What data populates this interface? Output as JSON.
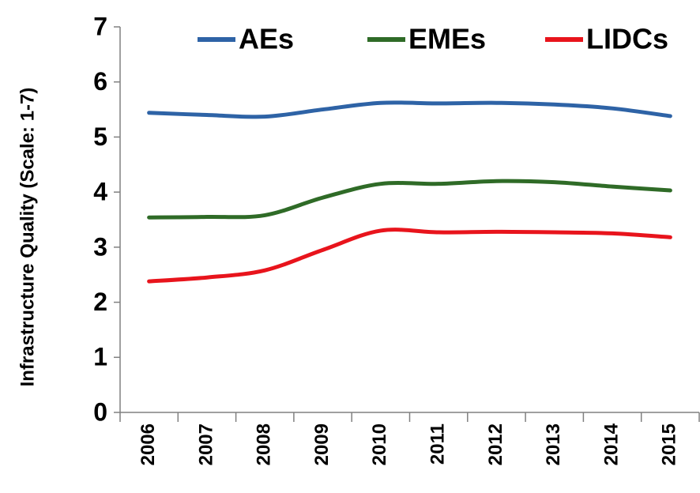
{
  "chart_data": {
    "type": "line",
    "y_label": "Infrastructure Quality (Scale: 1-7)",
    "categories": [
      "2006",
      "2007",
      "2008",
      "2009",
      "2010",
      "2011",
      "2012",
      "2013",
      "2014",
      "2015"
    ],
    "series": [
      {
        "name": "AEs",
        "color": "#2e63a6",
        "values": [
          5.44,
          5.4,
          5.37,
          5.5,
          5.62,
          5.61,
          5.62,
          5.59,
          5.52,
          5.38
        ]
      },
      {
        "name": "EMEs",
        "color": "#2f6b27",
        "values": [
          3.54,
          3.55,
          3.58,
          3.9,
          4.15,
          4.15,
          4.2,
          4.18,
          4.1,
          4.03
        ]
      },
      {
        "name": "LIDCs",
        "color": "#e8141c",
        "values": [
          2.38,
          2.45,
          2.58,
          2.95,
          3.3,
          3.27,
          3.28,
          3.27,
          3.25,
          3.18
        ]
      }
    ],
    "ylim": [
      0,
      7
    ],
    "yticks": [
      0,
      1,
      2,
      3,
      4,
      5,
      6,
      7
    ],
    "grid": false,
    "legend": "top"
  }
}
